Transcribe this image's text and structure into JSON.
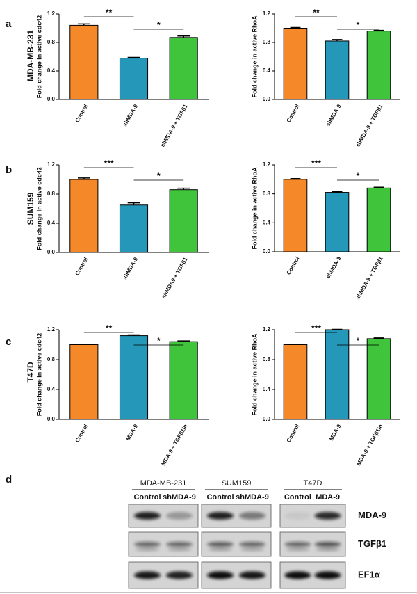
{
  "chart_data": [
    {
      "type": "bar",
      "ylabel": "Fold change in active cdc42",
      "categories": [
        "Control",
        "shMDA-9",
        "shMDA-9 + TGFβ1"
      ],
      "values": [
        1.04,
        0.58,
        0.87
      ],
      "errors": [
        0.02,
        0.01,
        0.02
      ],
      "colors": [
        "#f5892a",
        "#2597b9",
        "#3fc43b"
      ],
      "ylim": [
        0,
        1.2
      ],
      "yticks": [
        {
          "value": 0,
          "label": "0.0"
        },
        0.4,
        0.8,
        1.2
      ],
      "annotations": [
        "**",
        "*"
      ]
    },
    {
      "type": "bar",
      "ylabel": "Fold change in active RhoA",
      "categories": [
        "Control",
        "shMDA-9",
        "shMDA-9 + TGFβ1"
      ],
      "values": [
        1.0,
        0.82,
        0.96
      ],
      "errors": [
        0.01,
        0.02,
        0.01
      ],
      "colors": [
        "#f5892a",
        "#2597b9",
        "#3fc43b"
      ],
      "ylim": [
        0,
        1.2
      ],
      "yticks": [
        {
          "value": 0,
          "label": "0.0"
        },
        0.4,
        0.8,
        1.2
      ],
      "annotations": [
        "**",
        "*"
      ]
    },
    {
      "type": "bar",
      "ylabel": "Fold change in active cdc42",
      "categories": [
        "Control",
        "shMDA-9",
        "shMDA9 + TGFβ1"
      ],
      "values": [
        1.0,
        0.65,
        0.86
      ],
      "errors": [
        0.02,
        0.03,
        0.02
      ],
      "colors": [
        "#f5892a",
        "#2597b9",
        "#3fc43b"
      ],
      "ylim": [
        0,
        1.2
      ],
      "yticks": [
        {
          "value": 0,
          "label": "0.0"
        },
        0.4,
        0.8,
        1.2
      ],
      "annotations": [
        "***",
        "*"
      ]
    },
    {
      "type": "bar",
      "ylabel": "Fold change in active RhoA",
      "categories": [
        "Control",
        "shMDA-9",
        "shMDA-9 + TGFβ1"
      ],
      "values": [
        1.0,
        0.82,
        0.88
      ],
      "errors": [
        0.01,
        0.01,
        0.01
      ],
      "colors": [
        "#f5892a",
        "#2597b9",
        "#3fc43b"
      ],
      "ylim": [
        0,
        1.2
      ],
      "yticks": [
        {
          "value": 0,
          "label": "0.0"
        },
        0.4,
        0.8,
        1.2
      ],
      "annotations": [
        "***",
        "*"
      ]
    },
    {
      "type": "bar",
      "ylabel": "Fold change in active cdc42",
      "categories": [
        "Control",
        "MDA-9",
        "MDA-9 + TGFβ1in"
      ],
      "values": [
        1.0,
        1.12,
        1.04
      ],
      "errors": [
        0.005,
        0.01,
        0.01
      ],
      "colors": [
        "#f5892a",
        "#2597b9",
        "#3fc43b"
      ],
      "ylim": [
        0,
        1.2
      ],
      "yticks": [
        {
          "value": 0,
          "label": "0.0"
        },
        0.4,
        0.8,
        1.2
      ],
      "annotations": [
        "**",
        "*"
      ]
    },
    {
      "type": "bar",
      "ylabel": "Fold change in active RhoA",
      "categories": [
        "Control",
        "MDA-9",
        "MDA-9 + TGFβ1in"
      ],
      "values": [
        1.0,
        1.2,
        1.08
      ],
      "errors": [
        0.005,
        0.005,
        0.01
      ],
      "colors": [
        "#f5892a",
        "#2597b9",
        "#3fc43b"
      ],
      "ylim": [
        0,
        1.2
      ],
      "yticks": [
        {
          "value": 0,
          "label": "0.0"
        },
        0.4,
        0.8,
        1.2
      ],
      "annotations": [
        "***",
        "*"
      ]
    }
  ],
  "panels": [
    {
      "letter": "a",
      "label": "MDA-MB-231"
    },
    {
      "letter": "b",
      "label": "SUM159"
    },
    {
      "letter": "c",
      "label": "T47D"
    },
    {
      "letter": "d"
    }
  ],
  "blot": {
    "groups": [
      {
        "name": "MDA-MB-231",
        "lanes": [
          "Control",
          "shMDA-9"
        ]
      },
      {
        "name": "SUM159",
        "lanes": [
          "Control",
          "shMDA-9"
        ]
      },
      {
        "name": "T47D",
        "lanes": [
          "Control",
          "MDA-9"
        ]
      }
    ],
    "rows": [
      "MDA-9",
      "TGFβ1",
      "EF1α"
    ]
  }
}
